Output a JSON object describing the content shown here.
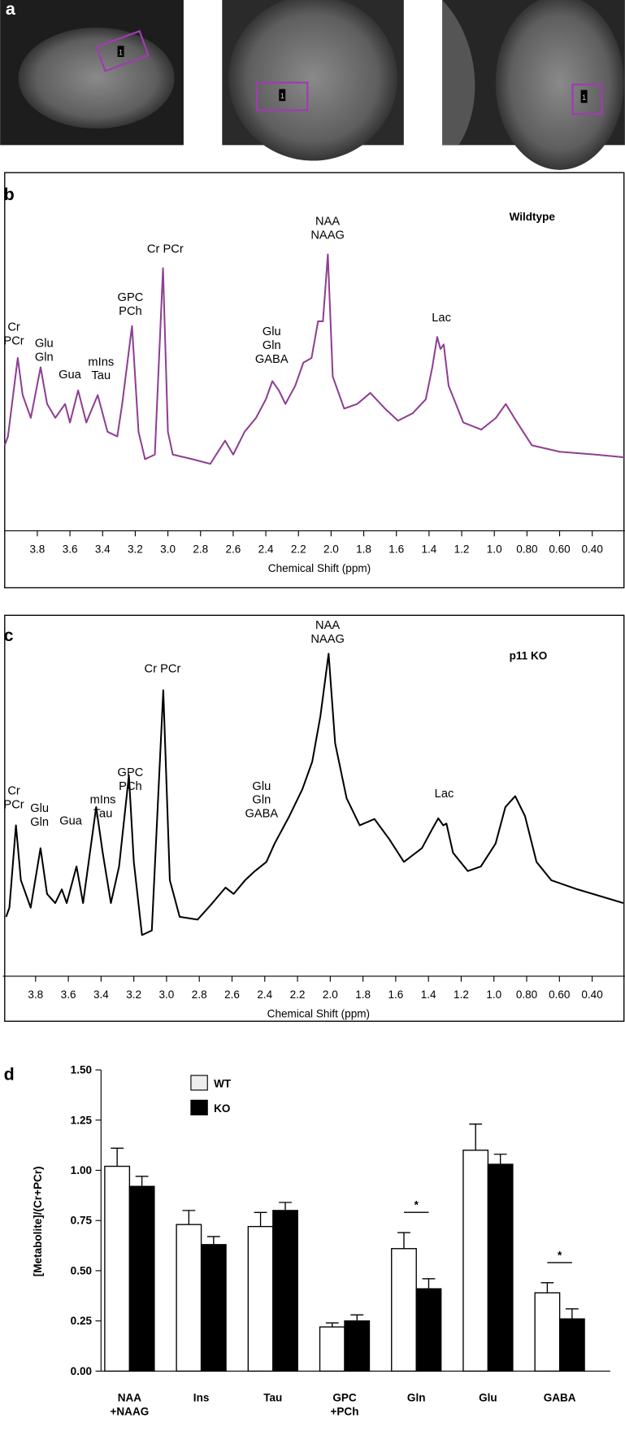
{
  "images": {
    "panel_label": "a",
    "voxel_labels": [
      "1",
      "1",
      "1"
    ]
  },
  "chart_data": [
    {
      "type": "line",
      "panel_label": "b",
      "xlabel": "Chemical Shift (ppm)",
      "xlim": [
        4.0,
        0.2
      ],
      "ylim": [
        0,
        100
      ],
      "xticks": [
        3.8,
        3.6,
        3.4,
        3.2,
        {
          "value": 3,
          "label": "3.0"
        },
        2.8,
        2.6,
        2.4,
        2.2,
        {
          "value": 2,
          "label": "2.0"
        },
        1.8,
        1.6,
        1.4,
        1.2,
        {
          "value": 1,
          "label": "1.0"
        },
        {
          "value": 0.8,
          "label": "0.80"
        },
        {
          "value": 0.6,
          "label": "0.60"
        },
        {
          "value": 0.4,
          "label": "0.40"
        }
      ],
      "x": [
        4.0,
        3.98,
        3.92,
        3.89,
        3.84,
        3.78,
        3.74,
        3.69,
        3.63,
        3.6,
        3.55,
        3.5,
        3.43,
        3.37,
        3.31,
        3.28,
        3.22,
        3.18,
        3.14,
        3.08,
        3.03,
        3.0,
        2.97,
        2.85,
        2.74,
        2.65,
        2.6,
        2.53,
        2.46,
        2.4,
        2.36,
        2.32,
        2.28,
        2.22,
        2.17,
        2.12,
        2.08,
        2.05,
        2.02,
        1.99,
        1.92,
        1.84,
        1.76,
        1.67,
        1.59,
        1.5,
        1.42,
        1.38,
        1.35,
        1.33,
        1.31,
        1.28,
        1.19,
        1.08,
        0.99,
        0.93,
        0.86,
        0.77,
        0.6,
        0.38,
        0.2
      ],
      "series": [
        {
          "name": "Wildtype",
          "color": "#8e3f93",
          "values": [
            24.0,
            26.5,
            48.5,
            38.1,
            31.7,
            45.9,
            35.6,
            31.7,
            35.6,
            30.4,
            39.4,
            30.4,
            38.1,
            27.8,
            26.5,
            35.6,
            57.5,
            27.8,
            20.1,
            21.4,
            73.7,
            27.8,
            21.4,
            20.1,
            18.8,
            25.3,
            21.4,
            27.8,
            31.7,
            36.9,
            42.0,
            39.4,
            35.6,
            40.7,
            47.2,
            48.5,
            58.8,
            58.8,
            77.6,
            43.3,
            34.3,
            35.6,
            38.7,
            34.3,
            30.9,
            33.0,
            36.9,
            45.9,
            54.4,
            51.0,
            52.3,
            40.7,
            30.4,
            28.4,
            31.7,
            35.6,
            30.4,
            24.0,
            22.2,
            21.4,
            20.6
          ]
        }
      ],
      "annotations": [
        "Cr\nPCr",
        "Glu\nGln",
        "Gua",
        "mIns\nTau",
        "GPC\nPCh",
        "Cr PCr",
        "Glu\nGln\nGABA",
        "NAA\nNAAG",
        "Lac"
      ]
    },
    {
      "type": "line",
      "panel_label": "c",
      "xlabel": "Chemical Shift (ppm)",
      "xlim": [
        4.0,
        0.2
      ],
      "ylim": [
        0,
        100
      ],
      "xticks": [
        3.8,
        3.6,
        3.4,
        3.2,
        {
          "value": 3,
          "label": "3.0"
        },
        2.8,
        2.6,
        2.4,
        2.2,
        {
          "value": 2,
          "label": "2.0"
        },
        1.8,
        1.6,
        1.4,
        1.2,
        {
          "value": 1,
          "label": "1.0"
        },
        {
          "value": 0.8,
          "label": "0.80"
        },
        {
          "value": 0.6,
          "label": "0.60"
        },
        {
          "value": 0.4,
          "label": "0.40"
        }
      ],
      "x": [
        3.98,
        3.96,
        3.92,
        3.89,
        3.83,
        3.77,
        3.73,
        3.68,
        3.64,
        3.61,
        3.55,
        3.51,
        3.43,
        3.39,
        3.34,
        3.29,
        3.23,
        3.2,
        3.15,
        3.09,
        3.02,
        2.98,
        2.92,
        2.81,
        2.72,
        2.64,
        2.59,
        2.52,
        2.46,
        2.39,
        2.34,
        2.25,
        2.17,
        2.11,
        2.06,
        2.01,
        1.97,
        1.9,
        1.82,
        1.73,
        1.64,
        1.55,
        1.44,
        1.38,
        1.34,
        1.31,
        1.29,
        1.25,
        1.16,
        1.08,
        0.99,
        0.93,
        0.87,
        0.81,
        0.74,
        0.65,
        0.49,
        0.21
      ],
      "series": [
        {
          "name": "p11 KO",
          "color": "#000000",
          "values": [
            16.9,
            19.5,
            42.9,
            27.3,
            19.5,
            36.4,
            23.4,
            20.8,
            24.7,
            20.8,
            31.2,
            20.8,
            48.1,
            35.1,
            20.8,
            31.2,
            57.1,
            32.5,
            11.7,
            13.0,
            81.3,
            27.3,
            16.9,
            16.1,
            20.8,
            25.2,
            23.4,
            27.3,
            29.9,
            32.5,
            37.7,
            45.5,
            53.2,
            61.0,
            74.0,
            91.7,
            66.2,
            50.6,
            42.9,
            44.7,
            39.0,
            32.5,
            36.4,
            41.6,
            44.9,
            42.9,
            43.4,
            35.1,
            29.9,
            31.2,
            37.7,
            48.1,
            51.2,
            45.5,
            32.5,
            27.3,
            24.7,
            20.8
          ]
        }
      ],
      "annotations": [
        "Cr\nPCr",
        "Glu\nGln",
        "Gua",
        "mIns\nTau",
        "GPC\nPCh",
        "Cr PCr",
        "Glu\nGln\nGABA",
        "NAA\nNAAG",
        "Lac"
      ]
    },
    {
      "type": "bar",
      "panel_label": "d",
      "ylabel": "[Metabolite]/(Cr+PCr)",
      "ylim": [
        0,
        1.5
      ],
      "yticks": [
        {
          "value": 0,
          "label": "0.00"
        },
        0.25,
        {
          "value": 0.5,
          "label": "0.50"
        },
        0.75,
        {
          "value": 1,
          "label": "1.00"
        },
        1.25,
        {
          "value": 1.5,
          "label": "1.50"
        }
      ],
      "categories": [
        "NAA\n+NAAG",
        "Ins",
        "Tau",
        "GPC\n+PCh",
        "Gln",
        "Glu",
        "GABA"
      ],
      "legend": "upper left",
      "series": [
        {
          "name": "WT",
          "color": "#ffffff",
          "values": [
            1.02,
            0.73,
            0.72,
            0.22,
            0.61,
            1.1,
            0.39
          ],
          "errors": [
            0.09,
            0.07,
            0.07,
            0.02,
            0.08,
            0.13,
            0.05
          ]
        },
        {
          "name": "KO",
          "color": "#000000",
          "values": [
            0.92,
            0.63,
            0.8,
            0.25,
            0.41,
            1.03,
            0.26
          ],
          "errors": [
            0.05,
            0.04,
            0.04,
            0.03,
            0.05,
            0.05,
            0.05
          ]
        }
      ],
      "annotations": [
        {
          "text": "*",
          "category": "Gln"
        },
        {
          "text": "*",
          "category": "GABA"
        }
      ]
    }
  ]
}
